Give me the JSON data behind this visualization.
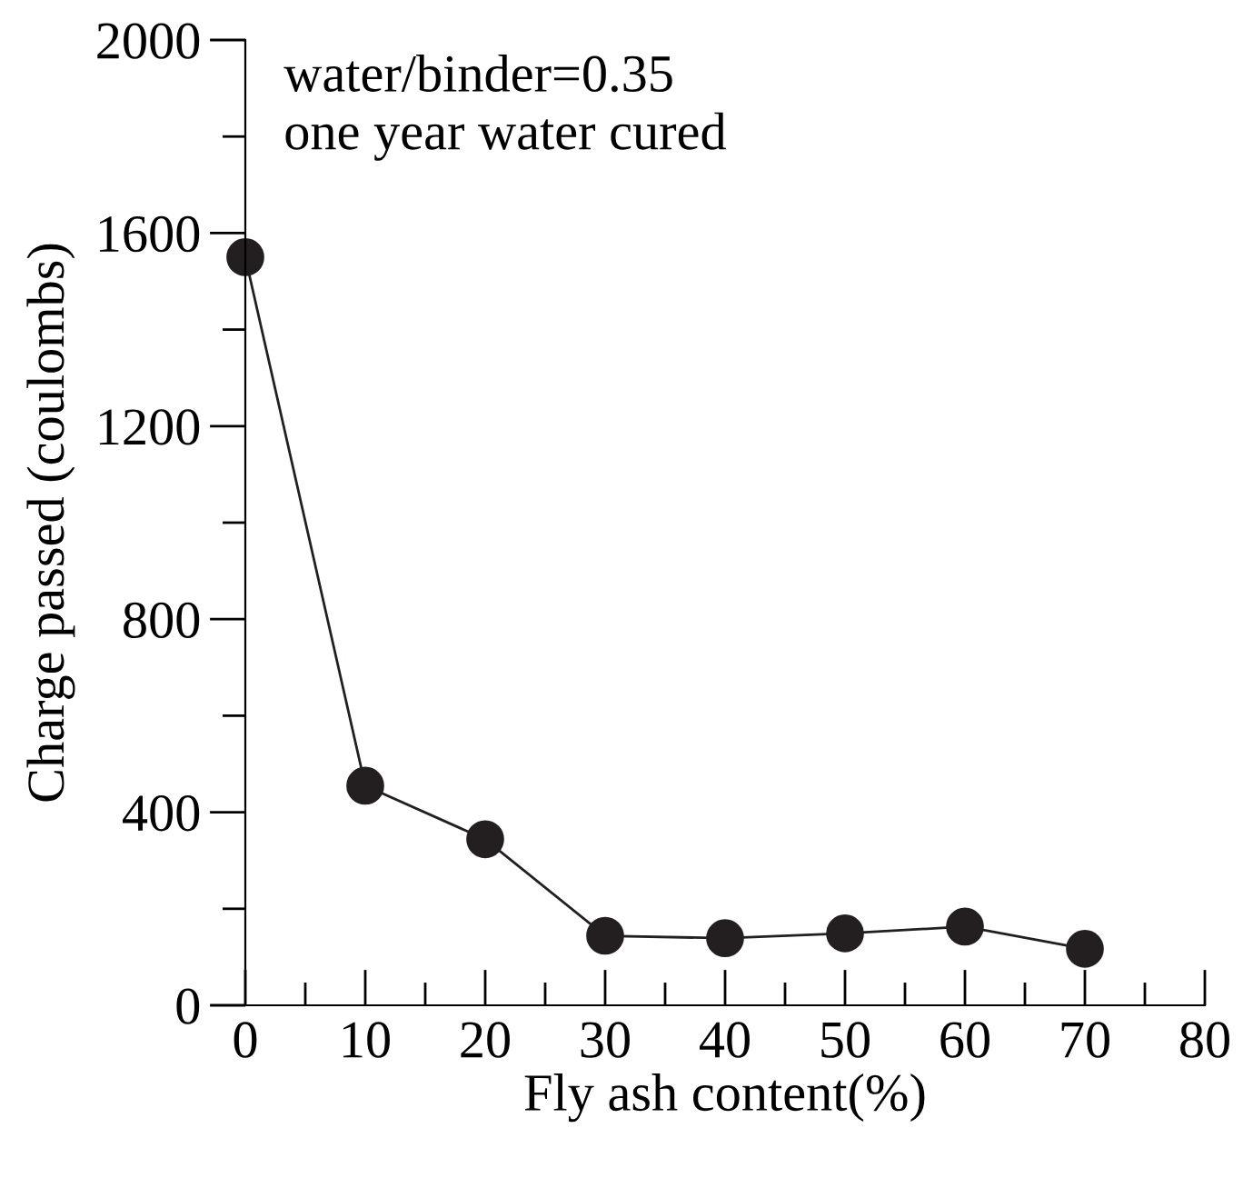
{
  "chart_data": {
    "type": "line",
    "xlabel": "Fly ash content(%)",
    "ylabel": "Charge passed (coulombs)",
    "annotations": [
      "water/binder=0.35",
      "one year water cured"
    ],
    "x": [
      0,
      10,
      20,
      30,
      40,
      50,
      60,
      70
    ],
    "series": [
      {
        "color": "#231f20",
        "values": [
          1550,
          455,
          344,
          144,
          139,
          149,
          163,
          117
        ]
      }
    ],
    "marker": "circle",
    "line_style": "solid",
    "grid": false,
    "legend": false,
    "xlim": [
      0,
      80
    ],
    "ylim": [
      0,
      2000
    ],
    "xticks": [
      0,
      10,
      20,
      30,
      40,
      50,
      60,
      70,
      80
    ],
    "yticks": [
      0,
      400,
      800,
      1200,
      1600,
      2000
    ]
  }
}
